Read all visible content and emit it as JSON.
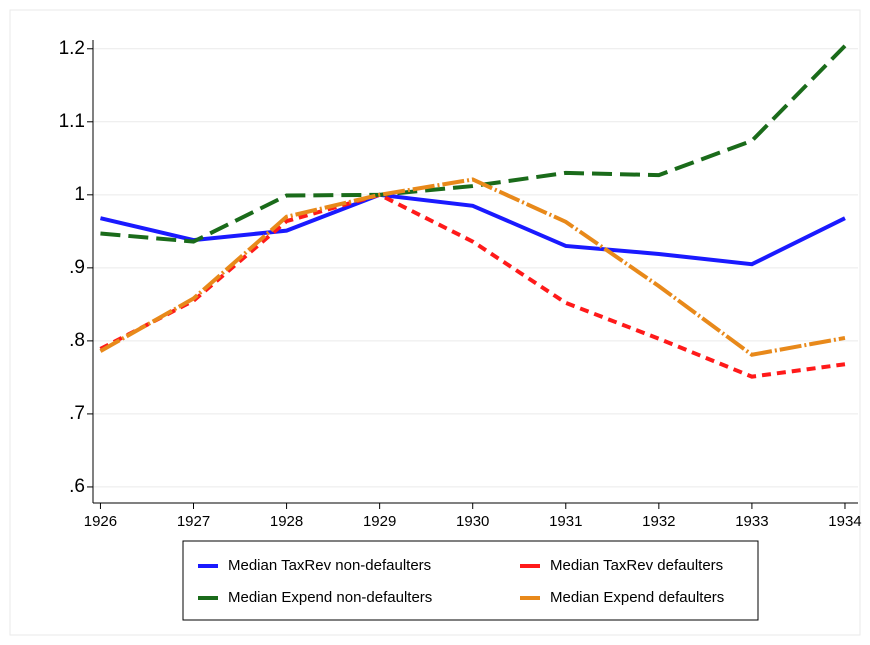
{
  "chart_data": {
    "type": "line",
    "x": [
      1926,
      1927,
      1928,
      1929,
      1930,
      1931,
      1932,
      1933,
      1934
    ],
    "xlim": [
      1925.92,
      1934.14
    ],
    "xticks": [
      1926,
      1927,
      1928,
      1929,
      1930,
      1931,
      1932,
      1933,
      1934
    ],
    "ylim": [
      0.578,
      1.212
    ],
    "yticks": [
      {
        "value": 0.6,
        "label": ".6"
      },
      {
        "value": 0.7,
        "label": ".7"
      },
      {
        "value": 0.8,
        "label": ".8"
      },
      {
        "value": 0.9,
        "label": ".9"
      },
      1,
      1.1,
      1.2
    ],
    "grid": true,
    "legend": "bottom",
    "series": [
      {
        "name": "Median TaxRev non-defaulters",
        "color": "#1a1aff",
        "dash": "solid",
        "values": [
          0.968,
          0.938,
          0.951,
          1.0,
          0.985,
          0.93,
          0.919,
          0.905,
          0.968
        ]
      },
      {
        "name": "Median TaxRev defaulters",
        "color": "#ff1a1a",
        "dash": "dash",
        "values": [
          0.789,
          0.855,
          0.964,
          1.0,
          0.936,
          0.852,
          0.803,
          0.751,
          0.768
        ]
      },
      {
        "name": "Median Expend non-defaulters",
        "color": "#1a6b1a",
        "dash": "longdash",
        "values": [
          0.947,
          0.936,
          0.999,
          1.0,
          1.012,
          1.03,
          1.027,
          1.074,
          1.204
        ]
      },
      {
        "name": "Median Expend defaulters",
        "color": "#e8891a",
        "dash": "dashdot",
        "values": [
          0.786,
          0.858,
          0.97,
          1.0,
          1.021,
          0.963,
          0.875,
          0.781,
          0.804
        ]
      }
    ]
  }
}
